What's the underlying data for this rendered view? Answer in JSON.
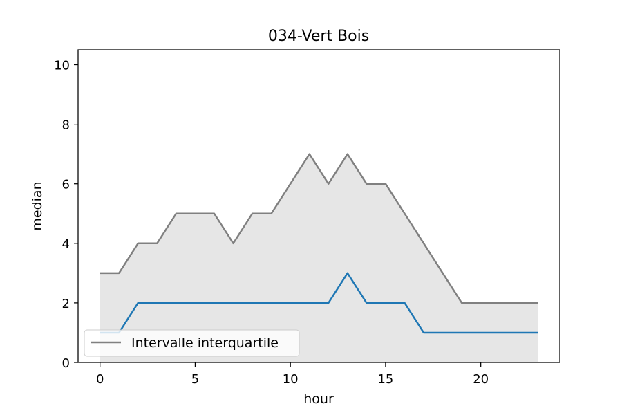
{
  "chart_data": {
    "type": "line",
    "title": "034-Vert Bois",
    "xlabel": "hour",
    "ylabel": "median",
    "xlim": [
      -1.15,
      24.15
    ],
    "ylim": [
      0,
      10.5
    ],
    "xticks": [
      0,
      5,
      10,
      15,
      20
    ],
    "yticks": [
      0,
      2,
      4,
      6,
      8,
      10
    ],
    "x": [
      0,
      1,
      2,
      3,
      4,
      5,
      6,
      7,
      8,
      9,
      10,
      11,
      12,
      13,
      14,
      15,
      16,
      17,
      18,
      19,
      20,
      21,
      22,
      23
    ],
    "series": [
      {
        "role": "median",
        "color": "#1f77b4",
        "values": [
          1,
          1,
          2,
          2,
          2,
          2,
          2,
          2,
          2,
          2,
          2,
          2,
          2,
          3,
          2,
          2,
          2,
          1,
          1,
          1,
          1,
          1,
          1,
          1
        ]
      },
      {
        "role": "interquartile-upper",
        "name": "Intervalle interquartile",
        "color": "#808080",
        "values": [
          3,
          3,
          4,
          4,
          5,
          5,
          5,
          4,
          5,
          5,
          6,
          7,
          6,
          7,
          6,
          6,
          5,
          4,
          3,
          2,
          2,
          2,
          2,
          2
        ]
      }
    ],
    "band": {
      "lower": [
        0,
        0,
        0,
        0,
        0,
        0,
        0,
        0,
        0,
        0,
        0,
        0,
        0,
        0,
        0,
        0,
        0,
        0,
        0,
        0,
        0,
        0,
        0,
        0
      ],
      "color": "#808080",
      "opacity": 0.2
    },
    "legend": {
      "placement": "lower-left",
      "entries": [
        "Intervalle interquartile"
      ]
    },
    "grid": false
  }
}
